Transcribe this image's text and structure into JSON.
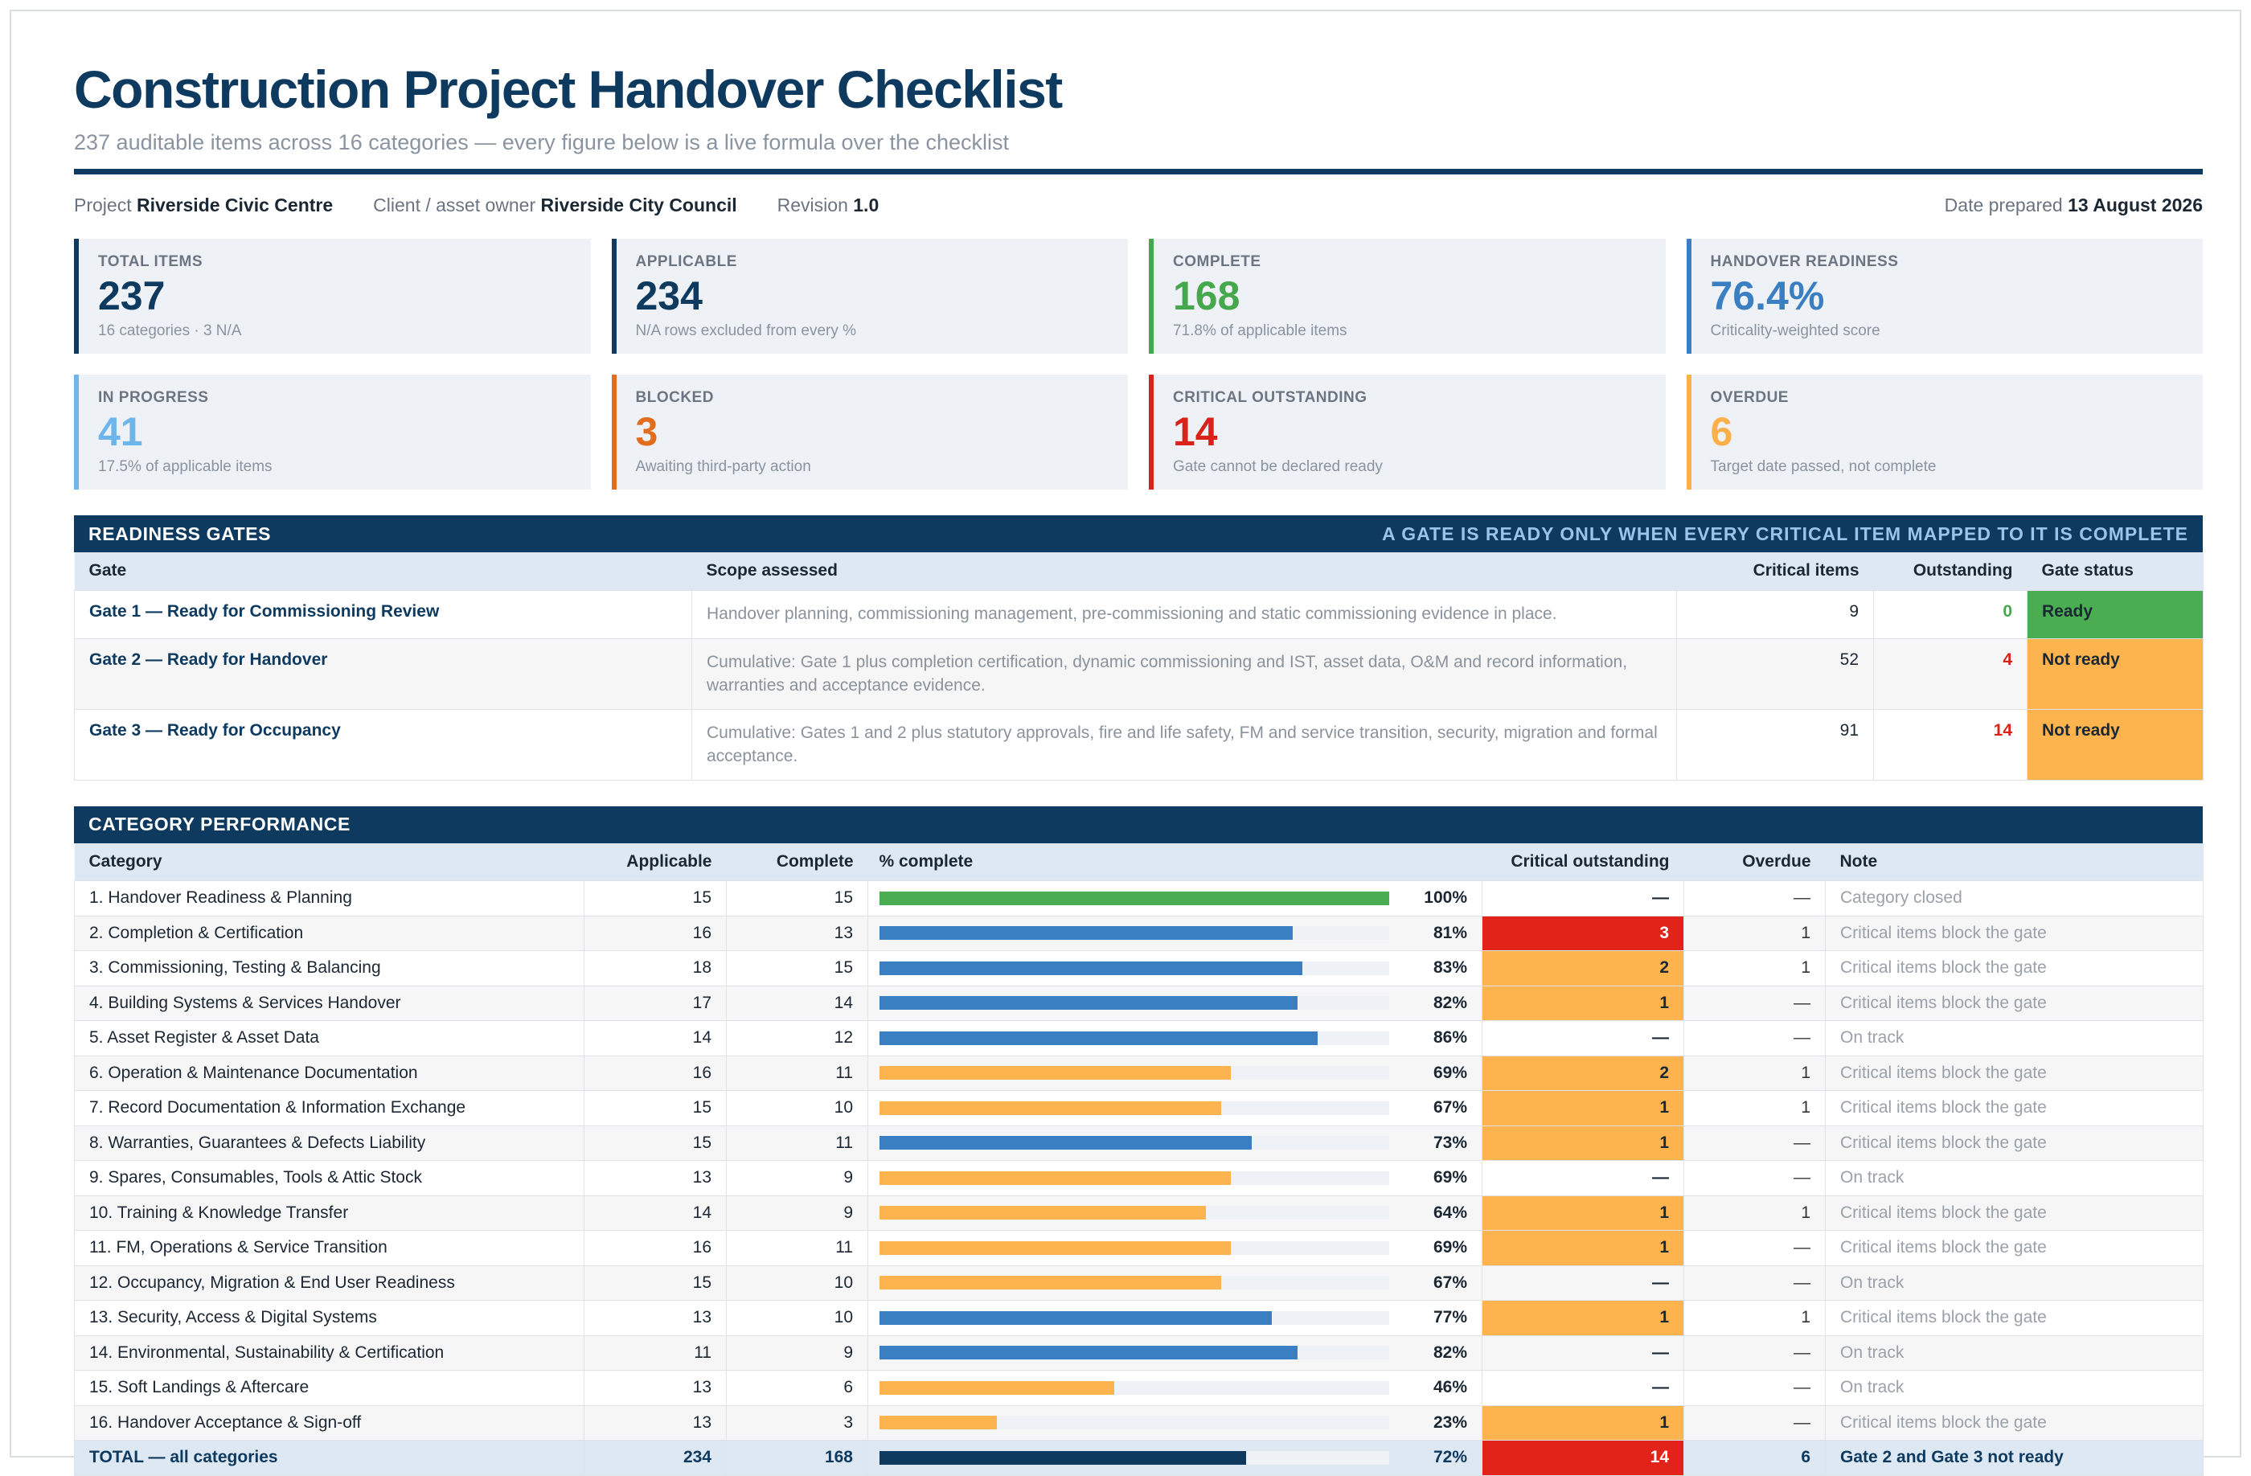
{
  "header": {
    "title": "Construction Project Handover Checklist",
    "subtitle": "237 auditable items across 16 categories — every figure below is a live formula over the checklist"
  },
  "meta": {
    "project_label": "Project",
    "project_value": "Riverside Civic Centre",
    "client_label": "Client / asset owner",
    "client_value": "Riverside City Council",
    "revision_label": "Revision",
    "revision_value": "1.0",
    "date_label": "Date prepared",
    "date_value": "13 August 2026"
  },
  "kpis": [
    {
      "label": "TOTAL ITEMS",
      "value": "237",
      "sub": "16 categories · 3 N/A",
      "color": "#0e3a60"
    },
    {
      "label": "APPLICABLE",
      "value": "234",
      "sub": "N/A rows excluded from every %",
      "color": "#0e3a60"
    },
    {
      "label": "COMPLETE",
      "value": "168",
      "sub": "71.8% of applicable items",
      "color": "#46a84c"
    },
    {
      "label": "HANDOVER READINESS",
      "value": "76.4%",
      "sub": "Criticality-weighted score",
      "color": "#3a7fc2"
    },
    {
      "label": "IN PROGRESS",
      "value": "41",
      "sub": "17.5% of applicable items",
      "color": "#6db5ea"
    },
    {
      "label": "BLOCKED",
      "value": "3",
      "sub": "Awaiting third-party action",
      "color": "#e26d1d"
    },
    {
      "label": "CRITICAL OUTSTANDING",
      "value": "14",
      "sub": "Gate cannot be declared ready",
      "color": "#d8221a"
    },
    {
      "label": "OVERDUE",
      "value": "6",
      "sub": "Target date passed, not complete",
      "color": "#fbb04a"
    }
  ],
  "gates_section": {
    "title": "READINESS GATES",
    "note": "A GATE IS READY ONLY WHEN EVERY CRITICAL ITEM MAPPED TO IT IS COMPLETE",
    "columns": [
      "Gate",
      "Scope assessed",
      "Critical items",
      "Outstanding",
      "Gate status"
    ],
    "rows": [
      {
        "gate": "Gate 1 — Ready for Commissioning Review",
        "scope": "Handover planning, commissioning management, pre-commissioning and static commissioning evidence in place.",
        "critical": "9",
        "outstanding": "0",
        "outstanding_color": "#46a84c",
        "status": "Ready",
        "status_color": "#4aad52"
      },
      {
        "gate": "Gate 2 — Ready for Handover",
        "scope": "Cumulative: Gate 1 plus completion certification, dynamic commissioning and IST, asset data, O&M and record information, warranties and acceptance evidence.",
        "critical": "52",
        "outstanding": "4",
        "outstanding_color": "#d8221a",
        "status": "Not ready",
        "status_color": "#fdb44e"
      },
      {
        "gate": "Gate 3 — Ready for Occupancy",
        "scope": "Cumulative: Gates 1 and 2 plus statutory approvals, fire and life safety, FM and service transition, security, migration and formal acceptance.",
        "critical": "91",
        "outstanding": "14",
        "outstanding_color": "#d8221a",
        "status": "Not ready",
        "status_color": "#fdb44e"
      }
    ]
  },
  "categories_section": {
    "title": "CATEGORY PERFORMANCE",
    "columns": [
      "Category",
      "Applicable",
      "Complete",
      "% complete",
      "Critical outstanding",
      "Overdue",
      "Note"
    ],
    "rows": [
      {
        "category": "1. Handover Readiness & Planning",
        "applicable": "15",
        "complete": "15",
        "pct": 100,
        "pct_label": "100%",
        "bar_color": "#4aad52",
        "critical": "—",
        "critical_bg": "",
        "overdue": "—",
        "note": "Category closed"
      },
      {
        "category": "2. Completion & Certification",
        "applicable": "16",
        "complete": "13",
        "pct": 81,
        "pct_label": "81%",
        "bar_color": "#3a7fc2",
        "critical": "3",
        "critical_bg": "#e2231a",
        "overdue": "1",
        "note": "Critical items block the gate"
      },
      {
        "category": "3. Commissioning, Testing & Balancing",
        "applicable": "18",
        "complete": "15",
        "pct": 83,
        "pct_label": "83%",
        "bar_color": "#3a7fc2",
        "critical": "2",
        "critical_bg": "#fdb44e",
        "overdue": "1",
        "note": "Critical items block the gate"
      },
      {
        "category": "4. Building Systems & Services Handover",
        "applicable": "17",
        "complete": "14",
        "pct": 82,
        "pct_label": "82%",
        "bar_color": "#3a7fc2",
        "critical": "1",
        "critical_bg": "#fdb44e",
        "overdue": "—",
        "note": "Critical items block the gate"
      },
      {
        "category": "5. Asset Register & Asset Data",
        "applicable": "14",
        "complete": "12",
        "pct": 86,
        "pct_label": "86%",
        "bar_color": "#3a7fc2",
        "critical": "—",
        "critical_bg": "",
        "overdue": "—",
        "note": "On track"
      },
      {
        "category": "6. Operation & Maintenance Documentation",
        "applicable": "16",
        "complete": "11",
        "pct": 69,
        "pct_label": "69%",
        "bar_color": "#fdb44e",
        "critical": "2",
        "critical_bg": "#fdb44e",
        "overdue": "1",
        "note": "Critical items block the gate"
      },
      {
        "category": "7. Record Documentation & Information Exchange",
        "applicable": "15",
        "complete": "10",
        "pct": 67,
        "pct_label": "67%",
        "bar_color": "#fdb44e",
        "critical": "1",
        "critical_bg": "#fdb44e",
        "overdue": "1",
        "note": "Critical items block the gate"
      },
      {
        "category": "8. Warranties, Guarantees & Defects Liability",
        "applicable": "15",
        "complete": "11",
        "pct": 73,
        "pct_label": "73%",
        "bar_color": "#3a7fc2",
        "critical": "1",
        "critical_bg": "#fdb44e",
        "overdue": "—",
        "note": "Critical items block the gate"
      },
      {
        "category": "9. Spares, Consumables, Tools & Attic Stock",
        "applicable": "13",
        "complete": "9",
        "pct": 69,
        "pct_label": "69%",
        "bar_color": "#fdb44e",
        "critical": "—",
        "critical_bg": "",
        "overdue": "—",
        "note": "On track"
      },
      {
        "category": "10. Training & Knowledge Transfer",
        "applicable": "14",
        "complete": "9",
        "pct": 64,
        "pct_label": "64%",
        "bar_color": "#fdb44e",
        "critical": "1",
        "critical_bg": "#fdb44e",
        "overdue": "1",
        "note": "Critical items block the gate"
      },
      {
        "category": "11. FM, Operations & Service Transition",
        "applicable": "16",
        "complete": "11",
        "pct": 69,
        "pct_label": "69%",
        "bar_color": "#fdb44e",
        "critical": "1",
        "critical_bg": "#fdb44e",
        "overdue": "—",
        "note": "Critical items block the gate"
      },
      {
        "category": "12. Occupancy, Migration & End User Readiness",
        "applicable": "15",
        "complete": "10",
        "pct": 67,
        "pct_label": "67%",
        "bar_color": "#fdb44e",
        "critical": "—",
        "critical_bg": "",
        "overdue": "—",
        "note": "On track"
      },
      {
        "category": "13. Security, Access & Digital Systems",
        "applicable": "13",
        "complete": "10",
        "pct": 77,
        "pct_label": "77%",
        "bar_color": "#3a7fc2",
        "critical": "1",
        "critical_bg": "#fdb44e",
        "overdue": "1",
        "note": "Critical items block the gate"
      },
      {
        "category": "14. Environmental, Sustainability & Certification",
        "applicable": "11",
        "complete": "9",
        "pct": 82,
        "pct_label": "82%",
        "bar_color": "#3a7fc2",
        "critical": "—",
        "critical_bg": "",
        "overdue": "—",
        "note": "On track"
      },
      {
        "category": "15. Soft Landings & Aftercare",
        "applicable": "13",
        "complete": "6",
        "pct": 46,
        "pct_label": "46%",
        "bar_color": "#fdb44e",
        "critical": "—",
        "critical_bg": "",
        "overdue": "—",
        "note": "On track"
      },
      {
        "category": "16. Handover Acceptance & Sign-off",
        "applicable": "13",
        "complete": "3",
        "pct": 23,
        "pct_label": "23%",
        "bar_color": "#fdb44e",
        "critical": "1",
        "critical_bg": "#fdb44e",
        "overdue": "—",
        "note": "Critical items block the gate"
      }
    ],
    "total": {
      "category": "TOTAL — all categories",
      "applicable": "234",
      "complete": "168",
      "pct": 72,
      "pct_label": "72%",
      "bar_color": "#0e3a60",
      "critical": "14",
      "critical_bg": "#e2231a",
      "overdue": "6",
      "note": "Gate 2 and Gate 3 not ready"
    }
  }
}
